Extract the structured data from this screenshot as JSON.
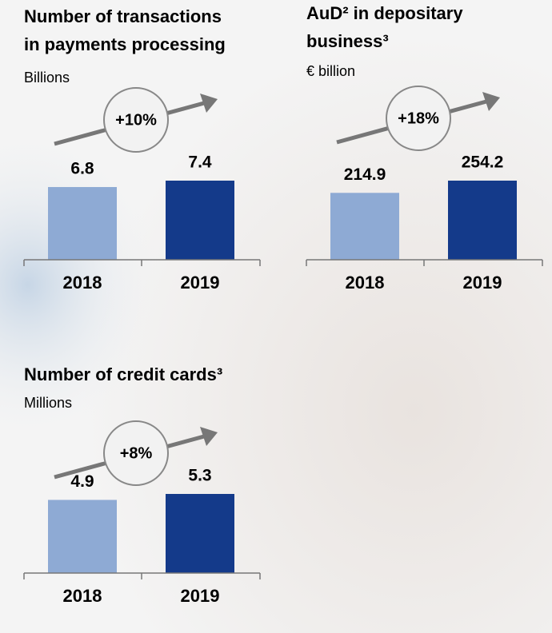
{
  "chart_data": [
    {
      "type": "bar",
      "title": [
        "Number of transactions",
        "in payments processing"
      ],
      "subtitle": "Billions",
      "annotation": "+10%",
      "categories": [
        "2018",
        "2019"
      ],
      "values": [
        6.8,
        7.4
      ],
      "colors": [
        "#8eaad4",
        "#143a8a"
      ]
    },
    {
      "type": "bar",
      "title": [
        "AuD² in depositary",
        "business³"
      ],
      "subtitle": "€ billion",
      "annotation": "+18%",
      "categories": [
        "2018",
        "2019"
      ],
      "values": [
        214.9,
        254.2
      ],
      "colors": [
        "#8eaad4",
        "#143a8a"
      ]
    },
    {
      "type": "bar",
      "title": [
        "Number of credit cards³"
      ],
      "subtitle": "Millions",
      "annotation": "+8%",
      "categories": [
        "2018",
        "2019"
      ],
      "values": [
        4.9,
        5.3
      ],
      "colors": [
        "#8eaad4",
        "#143a8a"
      ]
    }
  ]
}
